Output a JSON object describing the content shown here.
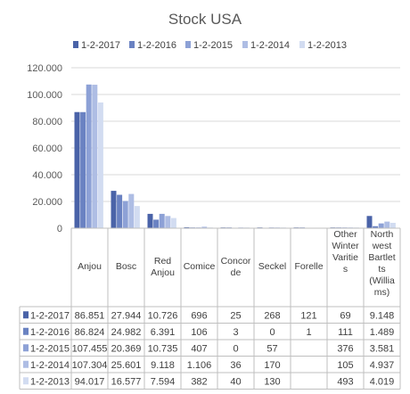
{
  "chart_data": {
    "type": "bar",
    "title": "Stock USA",
    "categories": [
      [
        "Anjou"
      ],
      [
        "Bosc"
      ],
      [
        "Red",
        "Anjou"
      ],
      [
        "Comice"
      ],
      [
        "Concor",
        "de"
      ],
      [
        "Seckel"
      ],
      [
        "Forelle"
      ],
      [
        "Other",
        "Winter",
        "Varitie",
        "s"
      ],
      [
        "North",
        "west",
        "Bartlet",
        "ts",
        "(Willia",
        "ms)"
      ]
    ],
    "series": [
      {
        "name": "1-2-2017",
        "color": "#4a63a8",
        "values": [
          86851,
          27944,
          10726,
          696,
          25,
          268,
          121,
          69,
          9148
        ],
        "labels": [
          "86.851",
          "27.944",
          "10.726",
          "696",
          "25",
          "268",
          "121",
          "69",
          "9.148"
        ]
      },
      {
        "name": "1-2-2016",
        "color": "#6a82c2",
        "values": [
          86824,
          24982,
          6391,
          106,
          3,
          0,
          1,
          111,
          1489
        ],
        "labels": [
          "86.824",
          "24.982",
          "6.391",
          "106",
          "3",
          "0",
          "1",
          "111",
          "1.489"
        ]
      },
      {
        "name": "1-2-2015",
        "color": "#8da1d6",
        "values": [
          107455,
          20369,
          10735,
          407,
          0,
          57,
          null,
          376,
          3581
        ],
        "labels": [
          "107.455",
          "20.369",
          "10.735",
          "407",
          "0",
          "57",
          "",
          "376",
          "3.581"
        ]
      },
      {
        "name": "1-2-2014",
        "color": "#aebde4",
        "values": [
          107304,
          25601,
          9118,
          1106,
          36,
          170,
          null,
          105,
          4937
        ],
        "labels": [
          "107.304",
          "25.601",
          "9.118",
          "1.106",
          "36",
          "170",
          "",
          "105",
          "4.937"
        ]
      },
      {
        "name": "1-2-2013",
        "color": "#d2dcf1",
        "values": [
          94017,
          16577,
          7594,
          382,
          40,
          130,
          null,
          493,
          4019
        ],
        "labels": [
          "94.017",
          "16.577",
          "7.594",
          "382",
          "40",
          "130",
          "",
          "493",
          "4.019"
        ]
      }
    ],
    "ylim": [
      0,
      120000
    ],
    "yticks": [
      0,
      20000,
      40000,
      60000,
      80000,
      100000,
      120000
    ],
    "ytick_labels": [
      "0",
      "20.000",
      "40.000",
      "60.000",
      "80.000",
      "100.000",
      "120.000"
    ],
    "grid": true,
    "legend": "top",
    "data_table": true
  }
}
